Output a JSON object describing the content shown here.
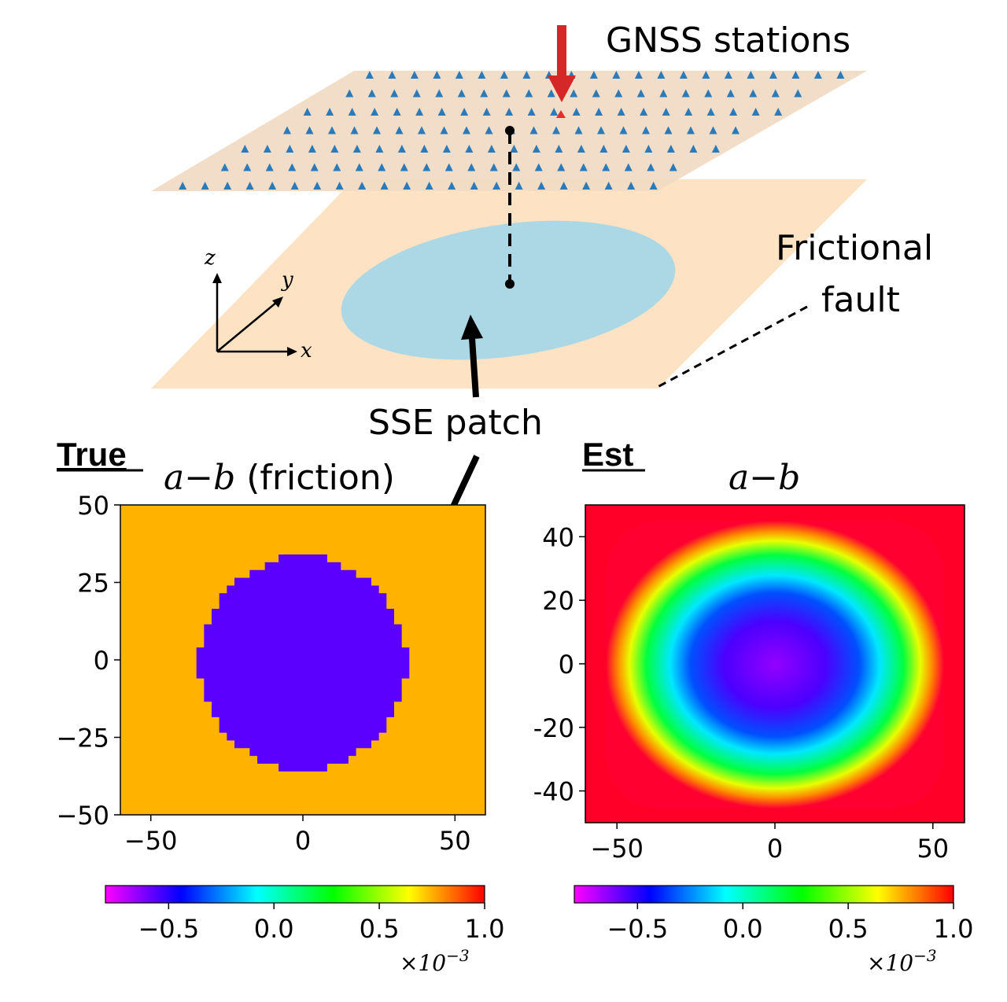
{
  "diagram": {
    "gnss_label": "GNSS stations",
    "fault_label_line1": "Frictional",
    "fault_label_line2": "fault",
    "sse_label": "SSE patch",
    "axis_z": "z",
    "axis_y": "y",
    "axis_x": "x",
    "colors": {
      "station_plane": "#f2e0cb",
      "station_marker": "#2b7bba",
      "highlight_station": "#e03030",
      "fault_plane": "#fde3c4",
      "sse_patch": "#a9d6e5",
      "arrow_red": "#d62728"
    }
  },
  "panels": {
    "true": {
      "tag": "True",
      "title_math": "a−b",
      "title_suffix": " (friction)",
      "xticks": [
        "−50",
        "0",
        "50"
      ],
      "yticks": [
        "50",
        "25",
        "0",
        "−25",
        "−50"
      ],
      "colorbar_ticks": [
        "−0.5",
        "0.0",
        "0.5",
        "1.0"
      ],
      "colorbar_scale": "×10",
      "colorbar_exp": "−3"
    },
    "est": {
      "tag": "Est",
      "title_math": "a−b",
      "xticks": [
        "−50",
        "0",
        "50"
      ],
      "yticks": [
        "40",
        "20",
        "0",
        "-20",
        "-40"
      ],
      "colorbar_ticks": [
        "−0.5",
        "0.0",
        "0.5",
        "1.0"
      ],
      "colorbar_scale": "×10",
      "colorbar_exp": "−3"
    }
  }
}
